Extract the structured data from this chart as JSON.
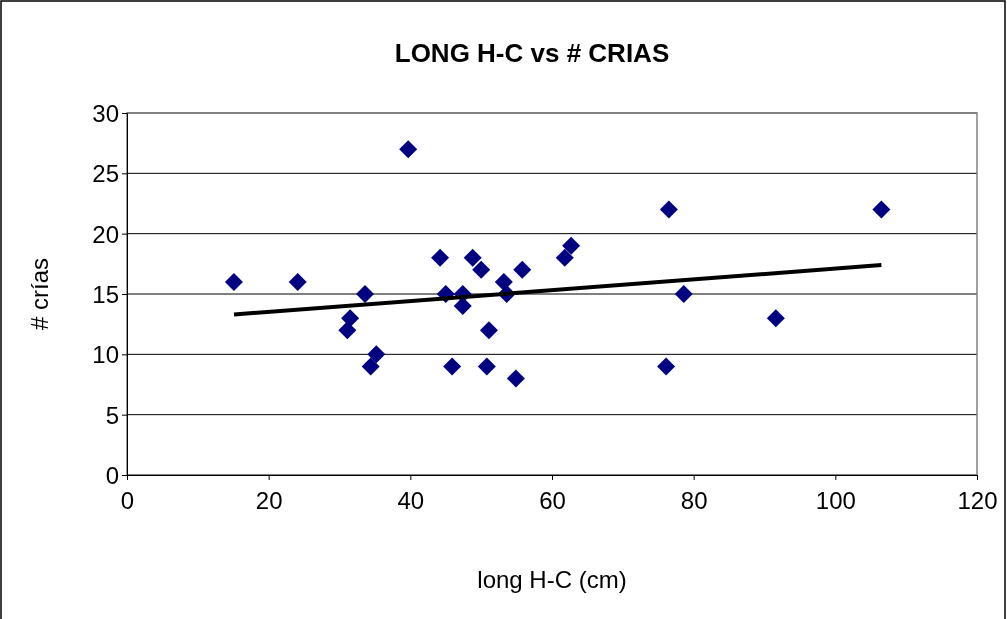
{
  "chart_data": {
    "type": "scatter",
    "title": "LONG H-C vs # CRIAS",
    "xlabel": "long H-C (cm)",
    "ylabel": "# crías",
    "xlim": [
      0,
      120
    ],
    "xticks": [
      0,
      20,
      40,
      60,
      80,
      100,
      120
    ],
    "ylim": [
      0,
      30
    ],
    "yticks": [
      0,
      5,
      10,
      15,
      20,
      25,
      30
    ],
    "grid": "y",
    "series": [
      {
        "marker": "diamond",
        "color": "#000080",
        "x": [
          15.1,
          24.1,
          31.1,
          31.5,
          33.6,
          34.4,
          35.2,
          39.7,
          44.2,
          45,
          45.9,
          47.4,
          47.4,
          48.8,
          50,
          51.1,
          50.8,
          53.2,
          53.6,
          54.9,
          55.8,
          61.8,
          62.7,
          76.1,
          76.5,
          78.6,
          91.6,
          106.5
        ],
        "values": [
          16,
          16,
          12,
          13,
          15,
          9,
          10,
          27,
          18,
          15,
          9,
          15,
          14,
          18,
          17,
          12,
          9,
          16,
          15,
          8,
          17,
          18,
          19,
          9,
          22,
          15,
          13,
          22
        ]
      },
      {
        "type": "line",
        "color": "#000000",
        "x": [
          15.1,
          106.5
        ],
        "values": [
          13.3,
          17.4
        ]
      }
    ]
  }
}
